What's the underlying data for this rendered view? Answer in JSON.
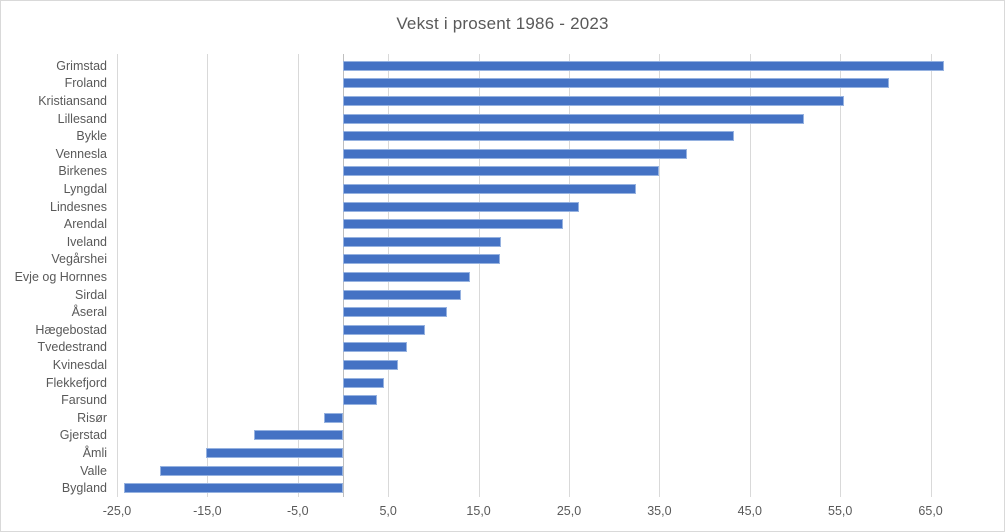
{
  "chart_data": {
    "type": "bar",
    "orientation": "horizontal",
    "title": "Vekst i prosent 1986 - 2023",
    "xlabel": "",
    "ylabel": "",
    "categories": [
      "Grimstad",
      "Froland",
      "Kristiansand",
      "Lillesand",
      "Bykle",
      "Vennesla",
      "Birkenes",
      "Lyngdal",
      "Lindesnes",
      "Arendal",
      "Iveland",
      "Vegårshei",
      "Evje og Hornnes",
      "Sirdal",
      "Åseral",
      "Hægebostad",
      "Tvedestrand",
      "Kvinesdal",
      "Flekkefjord",
      "Farsund",
      "Risør",
      "Gjerstad",
      "Åmli",
      "Valle",
      "Bygland"
    ],
    "values": [
      66.5,
      60.4,
      55.4,
      51.0,
      43.3,
      38.1,
      35.0,
      32.4,
      26.1,
      24.3,
      17.5,
      17.4,
      14.1,
      13.1,
      11.5,
      9.1,
      7.1,
      6.1,
      4.5,
      3.8,
      -2.1,
      -9.9,
      -15.2,
      -20.2,
      -24.2
    ],
    "xlim": [
      -25,
      70.8
    ],
    "x_ticks": [
      -25,
      -15,
      -5,
      5,
      15,
      25,
      35,
      45,
      55,
      65
    ],
    "x_tick_labels": [
      "-25,0",
      "-15,0",
      "-5,0",
      "5,0",
      "15,0",
      "25,0",
      "35,0",
      "45,0",
      "55,0",
      "65,0"
    ],
    "grid": "vertical-major",
    "legend": "none",
    "colors": {
      "bar": "#4472C4",
      "gridline": "#D9D9D9",
      "axis_line": "#BFBFBF",
      "text": "#595959",
      "background": "#FFFFFF",
      "border": "#D9D9D9"
    }
  }
}
